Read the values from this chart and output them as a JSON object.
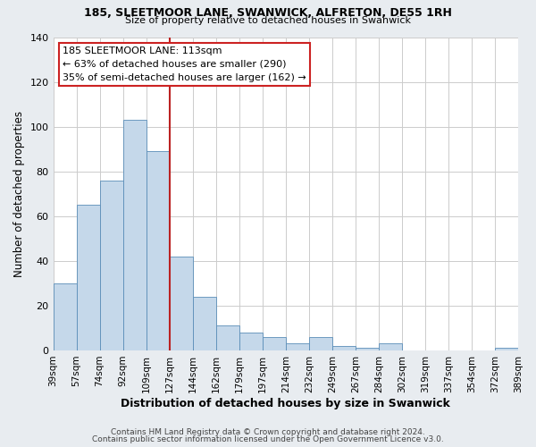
{
  "title": "185, SLEETMOOR LANE, SWANWICK, ALFRETON, DE55 1RH",
  "subtitle": "Size of property relative to detached houses in Swanwick",
  "xlabel": "Distribution of detached houses by size in Swanwick",
  "ylabel": "Number of detached properties",
  "bar_values": [
    30,
    65,
    76,
    103,
    89,
    42,
    24,
    11,
    8,
    6,
    3,
    6,
    2,
    1,
    3,
    0,
    0,
    0,
    0,
    1
  ],
  "bin_labels": [
    "39sqm",
    "57sqm",
    "74sqm",
    "92sqm",
    "109sqm",
    "127sqm",
    "144sqm",
    "162sqm",
    "179sqm",
    "197sqm",
    "214sqm",
    "232sqm",
    "249sqm",
    "267sqm",
    "284sqm",
    "302sqm",
    "319sqm",
    "337sqm",
    "354sqm",
    "372sqm",
    "389sqm"
  ],
  "bar_color": "#c5d8ea",
  "bar_edge_color": "#5b8db8",
  "vline_color": "#bb2222",
  "annotation_box_color": "#ffffff",
  "annotation_box_edge_color": "#cc2222",
  "annotation_title": "185 SLEETMOOR LANE: 113sqm",
  "annotation_line1": "← 63% of detached houses are smaller (290)",
  "annotation_line2": "35% of semi-detached houses are larger (162) →",
  "ylim": [
    0,
    140
  ],
  "yticks": [
    0,
    20,
    40,
    60,
    80,
    100,
    120,
    140
  ],
  "footer1": "Contains HM Land Registry data © Crown copyright and database right 2024.",
  "footer2": "Contains public sector information licensed under the Open Government Licence v3.0.",
  "background_color": "#e8ecf0",
  "plot_background_color": "#ffffff",
  "grid_color": "#cccccc"
}
